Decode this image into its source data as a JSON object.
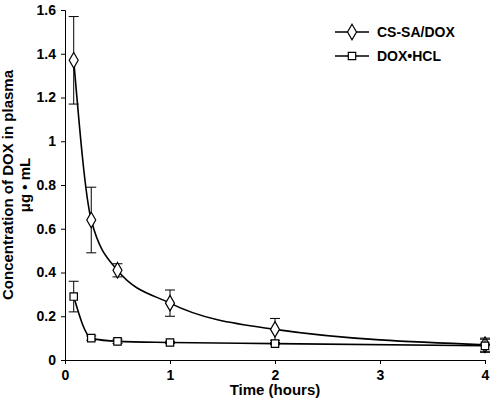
{
  "chart_data": {
    "type": "line",
    "xlabel": "Time (hours)",
    "ylabel": [
      "Concentration of DOX in plasma",
      "μg • mL"
    ],
    "x": [
      0.083,
      0.25,
      0.5,
      1,
      2,
      4
    ],
    "series": [
      {
        "name": "CS-SA/DOX",
        "color": "#000000",
        "marker": "diamond",
        "values": [
          1.37,
          0.64,
          0.41,
          0.26,
          0.14,
          0.07
        ],
        "errors": [
          0.2,
          0.15,
          0.03,
          0.06,
          0.05,
          0.03
        ]
      },
      {
        "name": "DOX•HCL",
        "color": "#000000",
        "marker": "square",
        "values": [
          0.29,
          0.1,
          0.085,
          0.08,
          0.075,
          0.065
        ],
        "errors": [
          0.07,
          0.01,
          0.01,
          0.005,
          0.005,
          0.03
        ]
      }
    ],
    "xlim": [
      0,
      4
    ],
    "xticks": [
      0,
      1,
      2,
      3,
      4
    ],
    "ylim": [
      0,
      1.6
    ],
    "yticks": [
      0,
      0.2,
      0.4,
      0.6,
      0.8,
      1,
      1.2,
      1.4,
      1.6
    ],
    "legend": "top-right",
    "grid": false
  }
}
